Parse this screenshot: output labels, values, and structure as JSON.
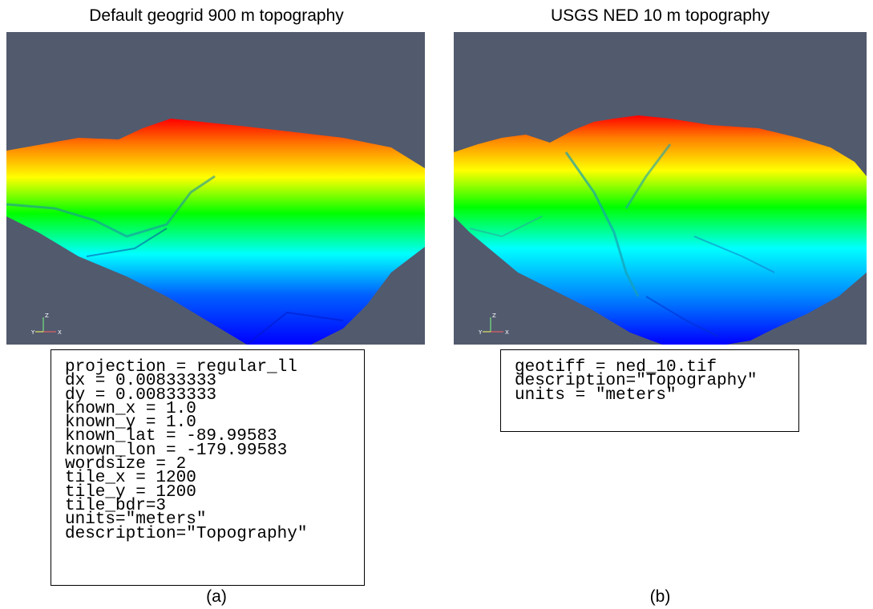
{
  "panel_a": {
    "title": "Default geogrid 900 m topography",
    "settings": [
      "projection = regular_ll",
      "dx = 0.00833333",
      "dy = 0.00833333",
      "known_x = 1.0",
      "known_y = 1.0",
      "known_lat = -89.99583",
      "known_lon = -179.99583",
      "wordsize = 2",
      "tile_x = 1200",
      "tile_y = 1200",
      "tile_bdr=3",
      "units=\"meters\"",
      "description=\"Topography\""
    ],
    "caption": "(a)",
    "axis_labels": {
      "z": "Z",
      "y": "Y",
      "x": "X"
    }
  },
  "panel_b": {
    "title": "USGS NED 10 m topography",
    "settings": [
      "geotiff = ned_10.tif",
      "description=\"Topography\"",
      "units = \"meters\""
    ],
    "caption": "(b)",
    "axis_labels": {
      "z": "Z",
      "y": "Y",
      "x": "X"
    }
  },
  "colors": {
    "background": "#525a6e",
    "colormap": [
      "#0000ff",
      "#00ffff",
      "#00ff00",
      "#ffff00",
      "#ff8000",
      "#ff0000"
    ]
  }
}
